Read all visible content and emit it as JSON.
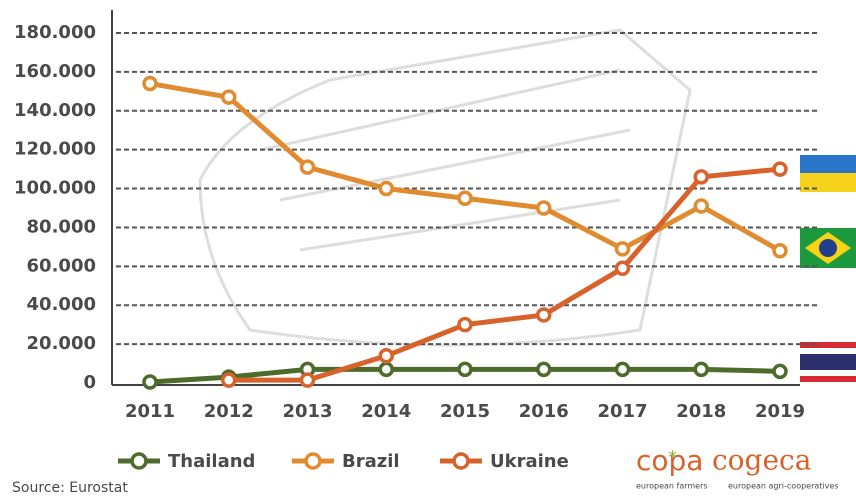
{
  "chart_data": {
    "type": "line",
    "x": [
      2011,
      2012,
      2013,
      2014,
      2015,
      2016,
      2017,
      2018,
      2019
    ],
    "xlim": [
      2011,
      2019
    ],
    "xticks": [
      2011,
      2012,
      2013,
      2014,
      2015,
      2016,
      2017,
      2018,
      2019
    ],
    "ylim": [
      0,
      180000
    ],
    "yticks": [
      0,
      {
        "value": 20000,
        "label": "20.000"
      },
      {
        "value": 40000,
        "label": "40.000"
      },
      {
        "value": 60000,
        "label": "60.000"
      },
      {
        "value": 80000,
        "label": "80.000"
      },
      {
        "value": 100000,
        "label": "100.000"
      },
      {
        "value": 120000,
        "label": "120.000"
      },
      {
        "value": 140000,
        "label": "140.000"
      },
      {
        "value": 160000,
        "label": "160.000"
      },
      {
        "value": 180000,
        "label": "180.000"
      }
    ],
    "grid": true,
    "series": [
      {
        "name": "Thailand",
        "color": "#4d6b2b",
        "values": [
          500,
          3000,
          7000,
          7000,
          7000,
          7000,
          7000,
          7000,
          6000
        ]
      },
      {
        "name": "Brazil",
        "color": "#e08b30",
        "values": [
          154000,
          147000,
          111000,
          100000,
          95000,
          90000,
          69000,
          91000,
          68000
        ]
      },
      {
        "name": "Ukraine",
        "color": "#d8622b",
        "values": [
          null,
          1500,
          1500,
          14000,
          30000,
          35000,
          59000,
          106000,
          110000
        ]
      }
    ],
    "source": "Source: Eurostat",
    "logo": {
      "left": "copa",
      "right": "cogeca",
      "left_sub": "european farmers",
      "right_sub": "european agri-cooperatives"
    }
  }
}
